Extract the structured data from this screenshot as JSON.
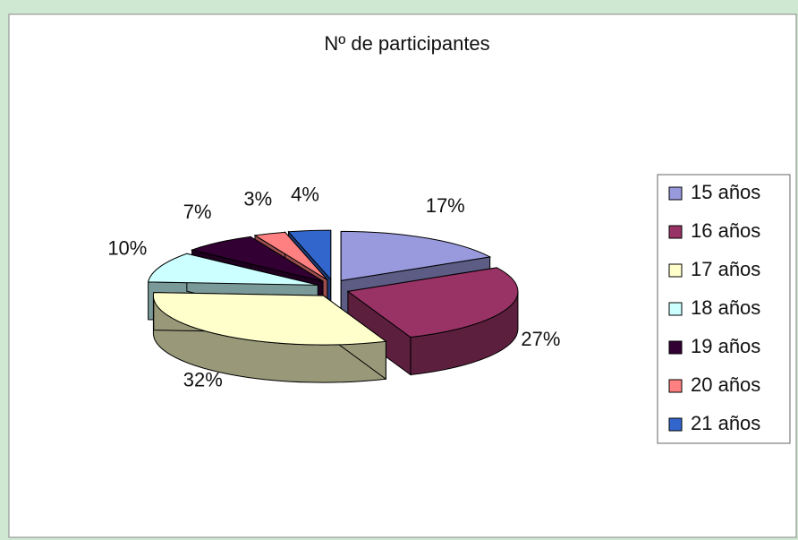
{
  "chart_data": {
    "type": "pie",
    "title": "Nº de participantes",
    "categories": [
      "15 años",
      "16 años",
      "17 años",
      "18 años",
      "19 años",
      "20 años",
      "21 años"
    ],
    "values": [
      17,
      27,
      32,
      10,
      7,
      3,
      4
    ],
    "value_labels": [
      "17%",
      "27%",
      "32%",
      "10%",
      "7%",
      "3%",
      "4%"
    ],
    "colors": [
      "#9999dd",
      "#993366",
      "#ffffcc",
      "#ccffff",
      "#330033",
      "#ff8080",
      "#3366cc"
    ],
    "legend": "right"
  }
}
